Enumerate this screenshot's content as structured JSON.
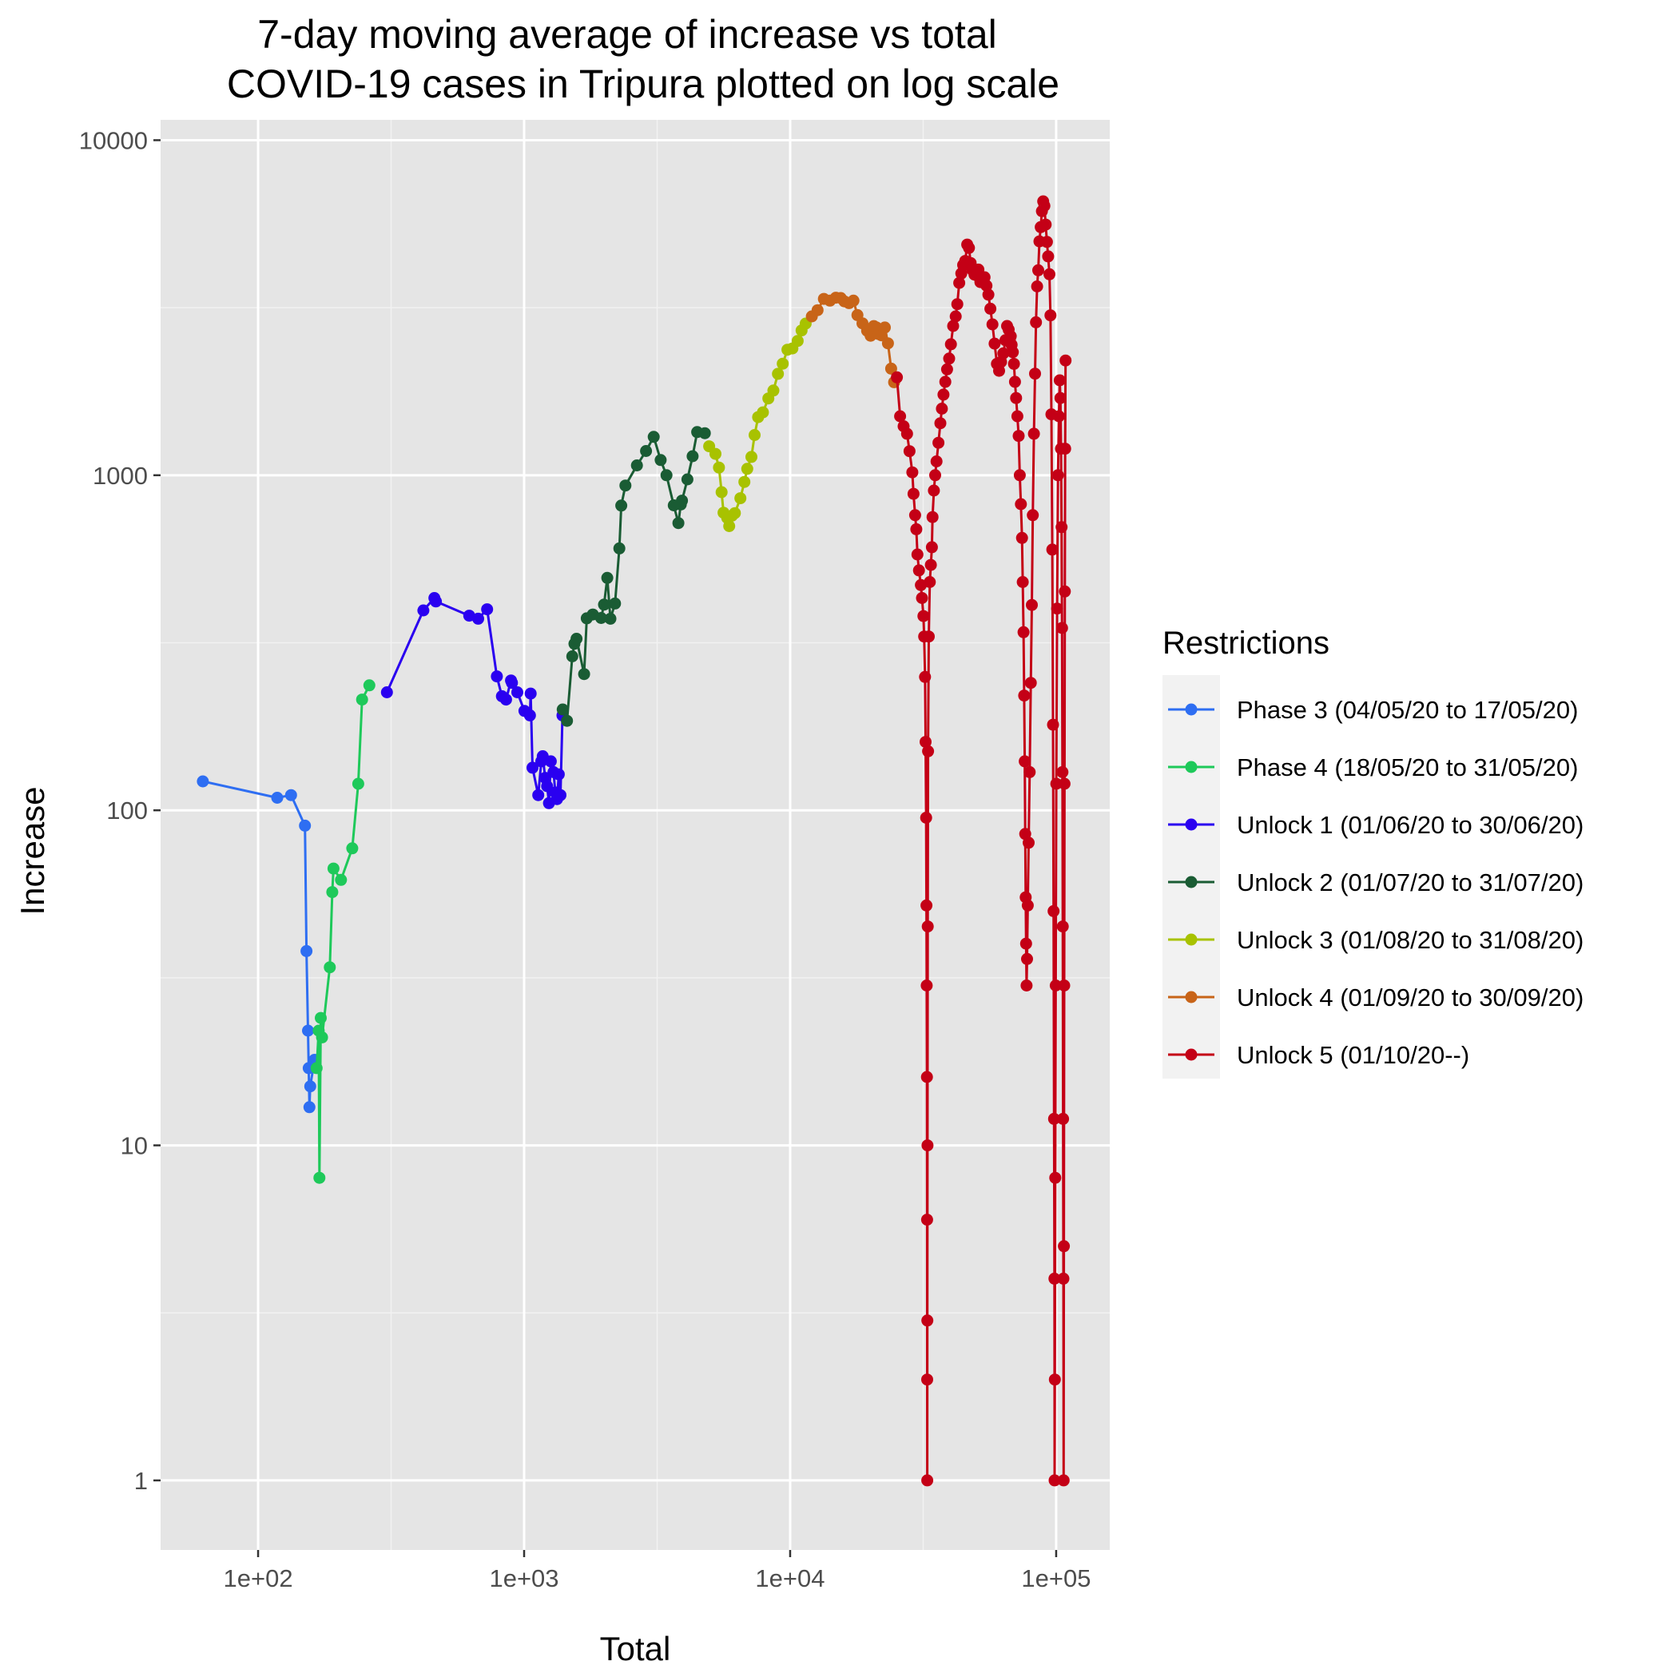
{
  "chart_data": {
    "type": "line",
    "title_lines": [
      "7-day moving average of increase vs total",
      "COVID-19 cases in Tripura plotted on log scale"
    ],
    "xlabel": "Total",
    "ylabel": "Increase",
    "x_scale": "log10",
    "y_scale": "log10",
    "xlim": [
      43,
      159000
    ],
    "ylim": [
      0.62,
      11500
    ],
    "x_ticks": [
      100,
      1000,
      10000,
      100000
    ],
    "x_tick_labels": [
      "1e+02",
      "1e+03",
      "1e+04",
      "1e+05"
    ],
    "y_ticks": [
      1,
      10,
      100,
      1000,
      10000
    ],
    "y_tick_labels": [
      "1",
      "10",
      "100",
      "1000",
      "10000"
    ],
    "grid": true,
    "legend_position": "right",
    "legend_title": "Restrictions",
    "series": [
      {
        "name": "Phase 3 (04/05/20 to 17/05/20)",
        "color": "#2e6ef2",
        "points": [
          [
            62,
            122
          ],
          [
            118,
            109
          ],
          [
            133,
            111
          ],
          [
            150,
            90
          ],
          [
            152,
            38
          ],
          [
            154,
            22
          ],
          [
            155,
            17
          ],
          [
            156,
            13
          ],
          [
            157,
            15
          ],
          [
            163,
            18
          ]
        ]
      },
      {
        "name": "Phase 4 (18/05/20 to 31/05/20)",
        "color": "#1ec95a",
        "points": [
          [
            166,
            17
          ],
          [
            169,
            22
          ],
          [
            170,
            8
          ],
          [
            172,
            24
          ],
          [
            174,
            21
          ],
          [
            186,
            34
          ],
          [
            190,
            57
          ],
          [
            192,
            67
          ],
          [
            205,
            62
          ],
          [
            226,
            77
          ],
          [
            238,
            120
          ],
          [
            246,
            214
          ],
          [
            262,
            236
          ]
        ]
      },
      {
        "name": "Unlock 1 (01/06/20 to 30/06/20)",
        "color": "#2a00f0",
        "points": [
          [
            305,
            225
          ],
          [
            418,
            395
          ],
          [
            460,
            430
          ],
          [
            466,
            420
          ],
          [
            622,
            381
          ],
          [
            672,
            373
          ],
          [
            726,
            398
          ],
          [
            790,
            251
          ],
          [
            825,
            219
          ],
          [
            855,
            214
          ],
          [
            893,
            244
          ],
          [
            900,
            240
          ],
          [
            943,
            225
          ],
          [
            1003,
            198
          ],
          [
            1052,
            192
          ],
          [
            1058,
            223
          ],
          [
            1075,
            134
          ],
          [
            1130,
            111
          ],
          [
            1160,
            140
          ],
          [
            1175,
            145
          ],
          [
            1200,
            125
          ],
          [
            1220,
            118
          ],
          [
            1240,
            105
          ],
          [
            1260,
            140
          ],
          [
            1290,
            130
          ],
          [
            1310,
            113
          ],
          [
            1330,
            108
          ],
          [
            1350,
            128
          ],
          [
            1370,
            111
          ],
          [
            1394,
            192
          ]
        ]
      },
      {
        "name": "Unlock 2 (01/07/20 to 31/07/20)",
        "color": "#1a5c34",
        "points": [
          [
            1396,
            200
          ],
          [
            1450,
            185
          ],
          [
            1517,
            288
          ],
          [
            1546,
            314
          ],
          [
            1574,
            325
          ],
          [
            1681,
            255
          ],
          [
            1720,
            374
          ],
          [
            1812,
            384
          ],
          [
            1947,
            375
          ],
          [
            1997,
            411
          ],
          [
            2054,
            494
          ],
          [
            2110,
            373
          ],
          [
            2197,
            414
          ],
          [
            2280,
            605
          ],
          [
            2318,
            812
          ],
          [
            2403,
            932
          ],
          [
            2654,
            1070
          ],
          [
            2872,
            1181
          ],
          [
            3069,
            1302
          ],
          [
            3260,
            1110
          ],
          [
            3430,
            1000
          ],
          [
            3652,
            813
          ],
          [
            3800,
            720
          ],
          [
            3880,
            818
          ],
          [
            3920,
            840
          ],
          [
            4109,
            972
          ],
          [
            4300,
            1140
          ],
          [
            4471,
            1345
          ],
          [
            4778,
            1335
          ]
        ]
      },
      {
        "name": "Unlock 3 (01/08/20 to 31/08/20)",
        "color": "#a8c200",
        "points": [
          [
            4960,
            1220
          ],
          [
            5240,
            1158
          ],
          [
            5400,
            1054
          ],
          [
            5524,
            890
          ],
          [
            5620,
            773
          ],
          [
            5800,
            746
          ],
          [
            5902,
            705
          ],
          [
            6045,
            757
          ],
          [
            6200,
            771
          ],
          [
            6500,
            854
          ],
          [
            6730,
            955
          ],
          [
            6900,
            1045
          ],
          [
            7150,
            1134
          ],
          [
            7350,
            1318
          ],
          [
            7580,
            1491
          ],
          [
            7900,
            1541
          ],
          [
            8280,
            1695
          ],
          [
            8650,
            1790
          ],
          [
            9000,
            2008
          ],
          [
            9380,
            2153
          ],
          [
            9770,
            2370
          ],
          [
            10200,
            2390
          ],
          [
            10670,
            2517
          ],
          [
            11040,
            2705
          ],
          [
            11437,
            2836
          ]
        ]
      },
      {
        "name": "Unlock 4 (01/09/20 to 30/09/20)",
        "color": "#c86418",
        "points": [
          [
            12060,
            2980
          ],
          [
            12680,
            3110
          ],
          [
            13390,
            3360
          ],
          [
            14110,
            3320
          ],
          [
            14850,
            3387
          ],
          [
            15500,
            3381
          ],
          [
            16000,
            3304
          ],
          [
            16650,
            3264
          ],
          [
            17300,
            3320
          ],
          [
            17900,
            3005
          ],
          [
            18700,
            2840
          ],
          [
            19460,
            2700
          ],
          [
            20070,
            2609
          ],
          [
            20630,
            2788
          ],
          [
            21110,
            2760
          ],
          [
            21540,
            2638
          ],
          [
            22040,
            2616
          ],
          [
            22690,
            2760
          ],
          [
            23320,
            2476
          ],
          [
            23970,
            2080
          ],
          [
            24590,
            1895
          ]
        ]
      },
      {
        "name": "Unlock 5 (01/10/20--)",
        "color": "#c40016",
        "points": [
          [
            25200,
            1960
          ],
          [
            25900,
            1500
          ],
          [
            26700,
            1400
          ],
          [
            27500,
            1330
          ],
          [
            28100,
            1180
          ],
          [
            28800,
            1020
          ],
          [
            29100,
            880
          ],
          [
            29500,
            760
          ],
          [
            29800,
            690
          ],
          [
            30100,
            580
          ],
          [
            30500,
            520
          ],
          [
            31000,
            470
          ],
          [
            31300,
            430
          ],
          [
            31700,
            380
          ],
          [
            31900,
            330
          ],
          [
            32150,
            250
          ],
          [
            32300,
            160
          ],
          [
            32450,
            95
          ],
          [
            32550,
            52
          ],
          [
            32620,
            30
          ],
          [
            32680,
            16
          ],
          [
            32720,
            6
          ],
          [
            32750,
            2
          ],
          [
            32760,
            1
          ],
          [
            32780,
            3
          ],
          [
            32830,
            10
          ],
          [
            32900,
            45
          ],
          [
            33000,
            150
          ],
          [
            33200,
            330
          ],
          [
            33500,
            480
          ],
          [
            33800,
            540
          ],
          [
            34100,
            610
          ],
          [
            34300,
            750
          ],
          [
            34700,
            900
          ],
          [
            35100,
            1000
          ],
          [
            35500,
            1100
          ],
          [
            36100,
            1250
          ],
          [
            36700,
            1430
          ],
          [
            37200,
            1580
          ],
          [
            37700,
            1740
          ],
          [
            38300,
            1900
          ],
          [
            38900,
            2070
          ],
          [
            39600,
            2230
          ],
          [
            40200,
            2460
          ],
          [
            41000,
            2790
          ],
          [
            41900,
            2980
          ],
          [
            42500,
            3240
          ],
          [
            43200,
            3750
          ],
          [
            44000,
            4000
          ],
          [
            44700,
            4240
          ],
          [
            45500,
            4360
          ],
          [
            46300,
            4880
          ],
          [
            47000,
            4770
          ],
          [
            47700,
            4300
          ],
          [
            48400,
            4100
          ],
          [
            49300,
            3970
          ],
          [
            50200,
            3950
          ],
          [
            51000,
            4110
          ],
          [
            51900,
            3770
          ],
          [
            52800,
            3820
          ],
          [
            53800,
            3900
          ],
          [
            54700,
            3680
          ],
          [
            55600,
            3460
          ],
          [
            56600,
            3140
          ],
          [
            57600,
            2820
          ],
          [
            58700,
            2470
          ],
          [
            59900,
            2150
          ],
          [
            61000,
            2050
          ],
          [
            62100,
            2180
          ],
          [
            63300,
            2310
          ],
          [
            64500,
            2530
          ],
          [
            65400,
            2790
          ],
          [
            66300,
            2720
          ],
          [
            67000,
            2540
          ],
          [
            67500,
            2600
          ],
          [
            68000,
            2450
          ],
          [
            68700,
            2330
          ],
          [
            69400,
            2150
          ],
          [
            70000,
            1900
          ],
          [
            70700,
            1700
          ],
          [
            71500,
            1500
          ],
          [
            72300,
            1310
          ],
          [
            73000,
            1000
          ],
          [
            73700,
            820
          ],
          [
            74400,
            650
          ],
          [
            74900,
            480
          ],
          [
            75400,
            340
          ],
          [
            75800,
            220
          ],
          [
            76200,
            140
          ],
          [
            76500,
            85
          ],
          [
            76800,
            55
          ],
          [
            77100,
            40
          ],
          [
            77400,
            30
          ],
          [
            77700,
            36
          ],
          [
            78200,
            52
          ],
          [
            78800,
            80
          ],
          [
            79500,
            130
          ],
          [
            80300,
            240
          ],
          [
            81000,
            410
          ],
          [
            81700,
            760
          ],
          [
            82500,
            1330
          ],
          [
            83300,
            2010
          ],
          [
            84000,
            2860
          ],
          [
            84800,
            3660
          ],
          [
            85600,
            4090
          ],
          [
            86500,
            4990
          ],
          [
            87500,
            5500
          ],
          [
            88400,
            6140
          ],
          [
            89400,
            6570
          ],
          [
            90300,
            6370
          ],
          [
            91300,
            5600
          ],
          [
            92300,
            4970
          ],
          [
            93300,
            4500
          ],
          [
            94300,
            3980
          ],
          [
            95200,
            3000
          ],
          [
            96000,
            1520
          ],
          [
            96700,
            600
          ],
          [
            97300,
            180
          ],
          [
            97800,
            50
          ],
          [
            98200,
            12
          ],
          [
            98500,
            4
          ],
          [
            98700,
            1
          ],
          [
            98900,
            2
          ],
          [
            99200,
            8
          ],
          [
            99600,
            30
          ],
          [
            100100,
            120
          ],
          [
            100800,
            400
          ],
          [
            101600,
            1000
          ],
          [
            102400,
            1500
          ],
          [
            103100,
            1920
          ],
          [
            103800,
            1700
          ],
          [
            104300,
            1200
          ],
          [
            104800,
            700
          ],
          [
            105200,
            350
          ],
          [
            105600,
            130
          ],
          [
            105900,
            45
          ],
          [
            106200,
            12
          ],
          [
            106500,
            4
          ],
          [
            106700,
            1
          ],
          [
            106900,
            5
          ],
          [
            107200,
            30
          ],
          [
            107500,
            120
          ],
          [
            107800,
            450
          ],
          [
            108100,
            1200
          ],
          [
            108500,
            2200
          ]
        ]
      }
    ]
  }
}
